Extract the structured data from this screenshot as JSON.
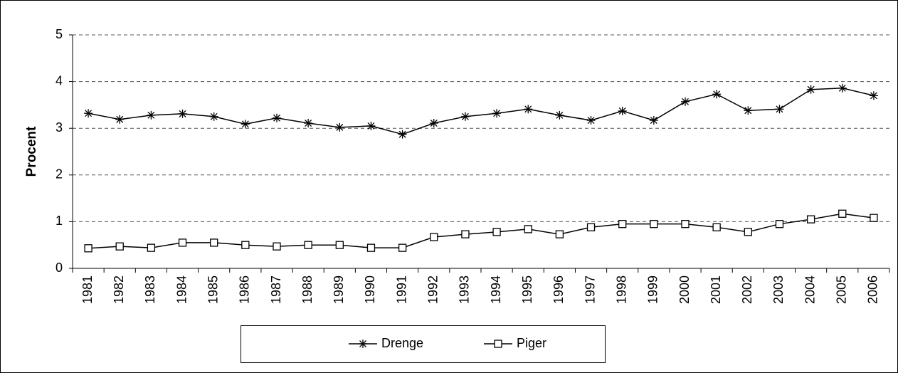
{
  "chart_data": {
    "type": "line",
    "ylabel": "Procent",
    "categories": [
      "1981",
      "1982",
      "1983",
      "1984",
      "1985",
      "1986",
      "1987",
      "1988",
      "1989",
      "1990",
      "1991",
      "1992",
      "1993",
      "1994",
      "1995",
      "1996",
      "1997",
      "1998",
      "1999",
      "2000",
      "2001",
      "2002",
      "2003",
      "2004",
      "2005",
      "2006"
    ],
    "series": [
      {
        "name": "Drenge",
        "color": "#000000",
        "marker": "star",
        "values": [
          3.32,
          3.19,
          3.28,
          3.31,
          3.25,
          3.09,
          3.22,
          3.11,
          3.02,
          3.05,
          2.87,
          3.11,
          3.25,
          3.32,
          3.41,
          3.28,
          3.17,
          3.37,
          3.17,
          3.57,
          3.73,
          3.38,
          3.41,
          3.83,
          3.86,
          3.7
        ]
      },
      {
        "name": "Piger",
        "color": "#000000",
        "marker": "square",
        "values": [
          0.43,
          0.47,
          0.44,
          0.55,
          0.55,
          0.5,
          0.47,
          0.5,
          0.5,
          0.44,
          0.44,
          0.67,
          0.73,
          0.78,
          0.84,
          0.73,
          0.88,
          0.95,
          0.95,
          0.95,
          0.88,
          0.78,
          0.95,
          1.05,
          1.17,
          1.08
        ]
      }
    ],
    "ylim": [
      0,
      5
    ],
    "yticks": [
      0,
      1,
      2,
      3,
      4,
      5
    ],
    "grid": true,
    "legend": "bottom"
  }
}
